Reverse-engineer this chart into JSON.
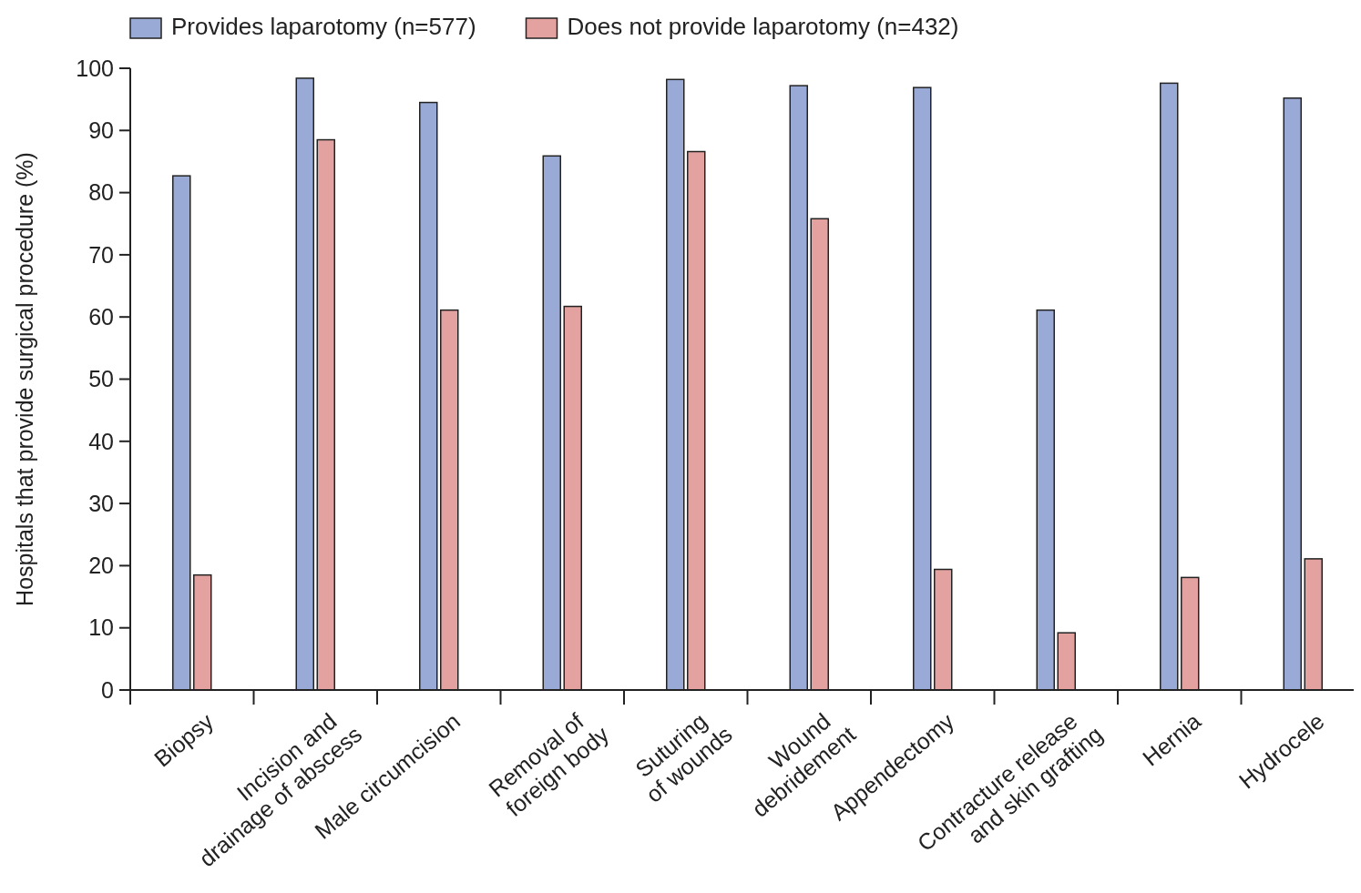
{
  "chart_data": {
    "type": "bar",
    "ylabel": "Hospitals that provide surgical procedure (%)",
    "categories": [
      "Biopsy",
      "Incision and\ndrainage of abscess",
      "Male circumcision",
      "Removal of\nforeign body",
      "Suturing\nof wounds",
      "Wound\ndebridement",
      "Appendectomy",
      "Contracture release\nand skin grafting",
      "Hernia",
      "Hydrocele"
    ],
    "series": [
      {
        "name": "Provides laparotomy (n=577)",
        "color": "#9aaad6",
        "values": [
          82.7,
          98.4,
          94.5,
          85.9,
          98.2,
          97.2,
          96.9,
          61.1,
          97.6,
          95.2
        ]
      },
      {
        "name": "Does not provide laparotomy (n=432)",
        "color": "#e3a29f",
        "values": [
          18.5,
          88.5,
          61.1,
          61.7,
          86.6,
          75.8,
          19.4,
          9.2,
          18.1,
          21.1
        ]
      }
    ],
    "ylim": [
      0,
      100
    ],
    "yticks": [
      0,
      10,
      20,
      30,
      40,
      50,
      60,
      70,
      80,
      90,
      100
    ],
    "grid": false,
    "legend": "top left"
  }
}
